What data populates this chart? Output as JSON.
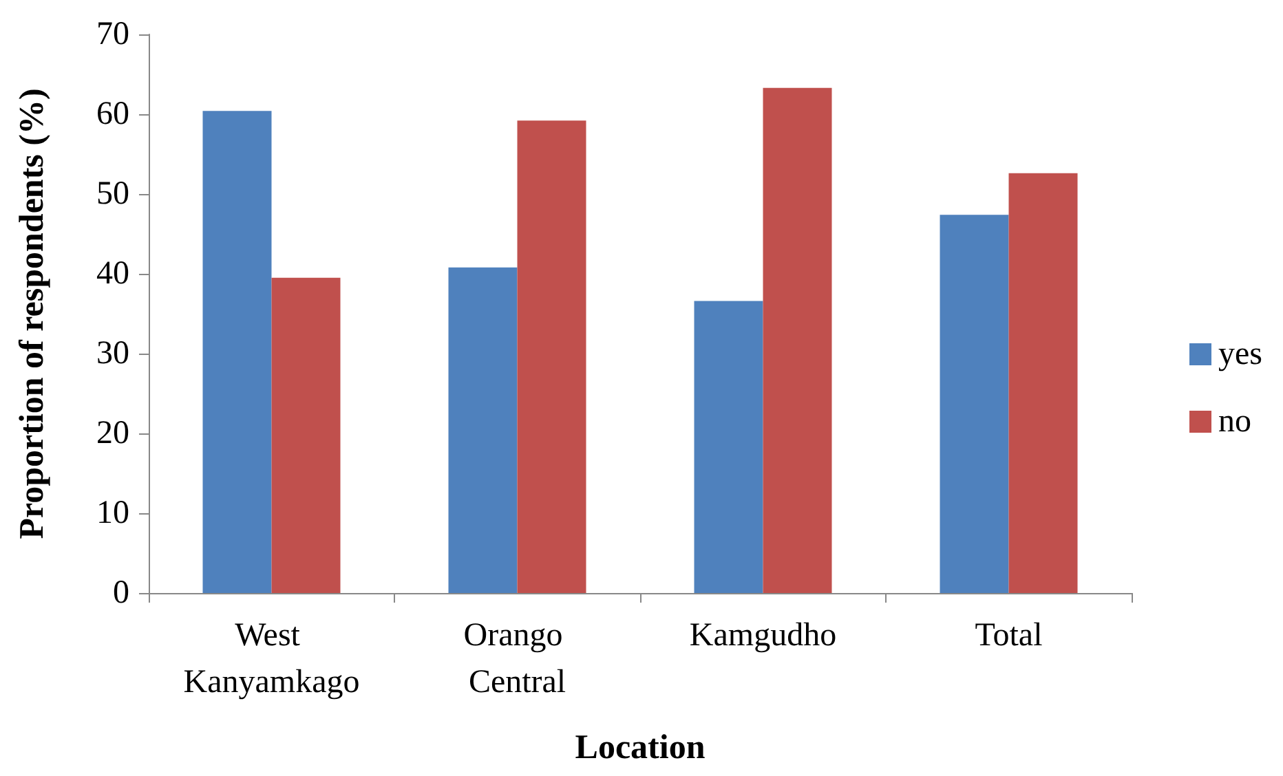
{
  "chart_data": {
    "type": "bar",
    "xlabel": "Location",
    "ylabel": "Proportion of respondents (%)",
    "categories": [
      "West Kanyamkago",
      "Orango Central",
      "Kamgudho",
      "Total"
    ],
    "series": [
      {
        "name": "yes",
        "color": "#4f81bd",
        "values": [
          60.4,
          40.8,
          36.6,
          47.4
        ]
      },
      {
        "name": "no",
        "color": "#c0504d",
        "values": [
          39.5,
          59.2,
          63.3,
          52.6
        ]
      }
    ],
    "ylim": [
      0,
      70
    ],
    "yticks": [
      0,
      10,
      20,
      30,
      40,
      50,
      60,
      70
    ],
    "grid": false,
    "legend": "right"
  }
}
